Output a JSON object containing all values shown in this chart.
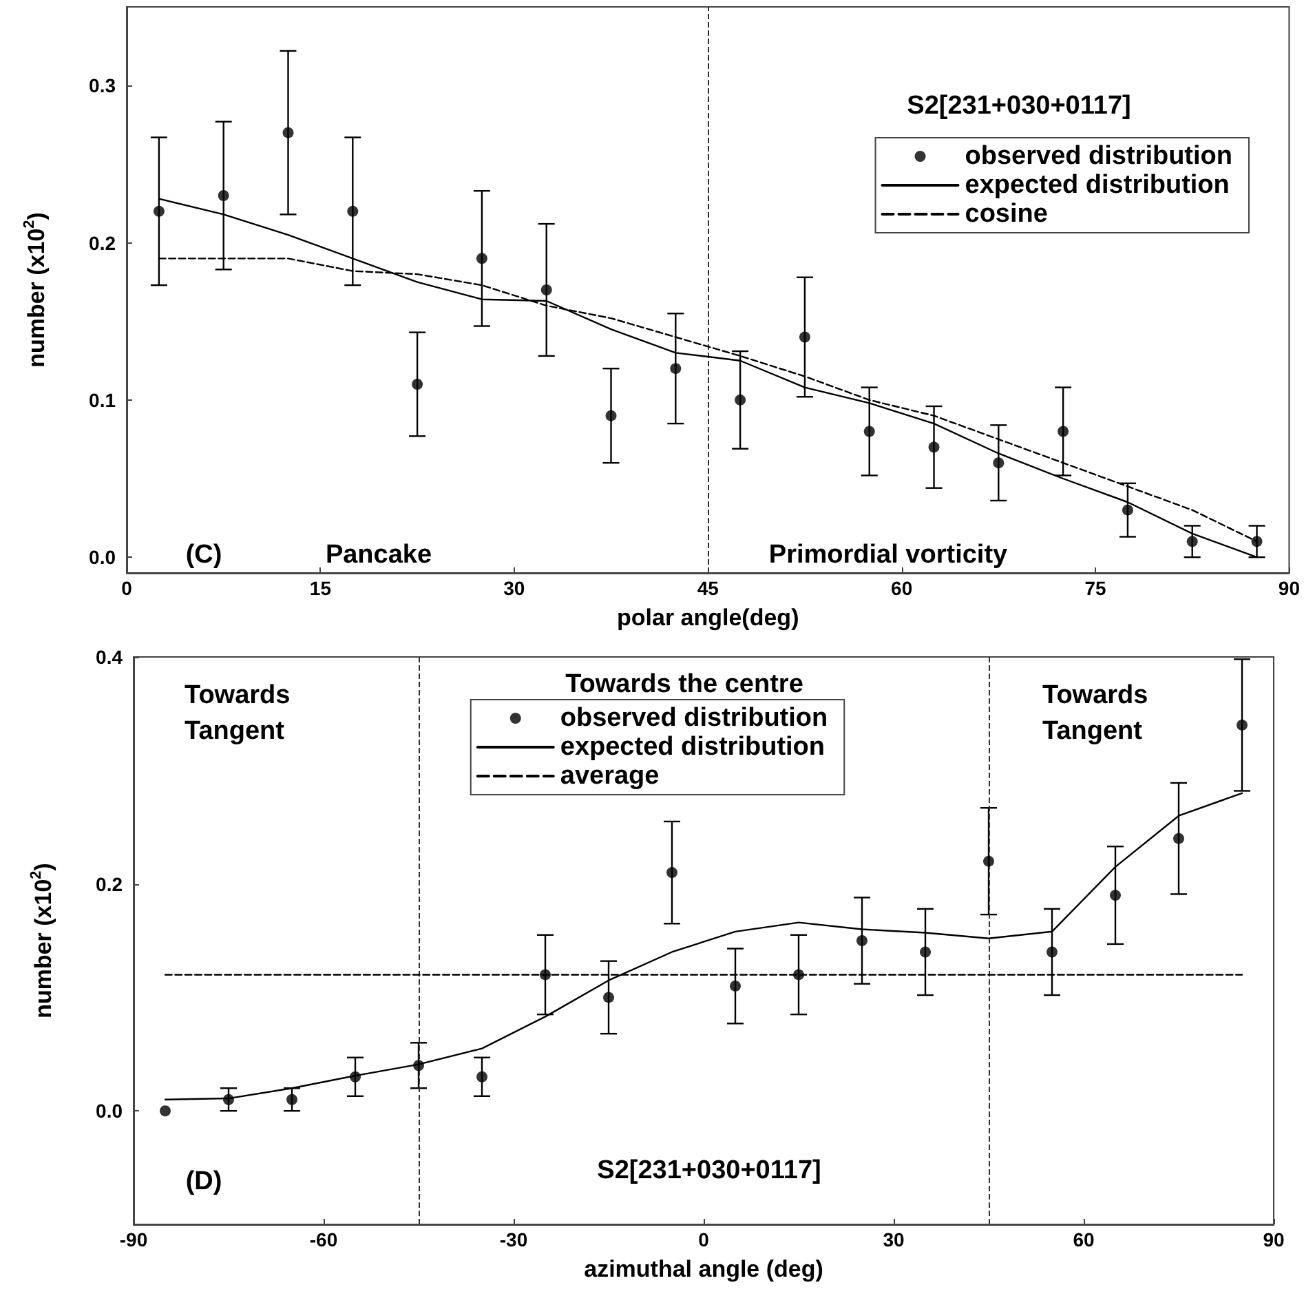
{
  "chart_data": [
    {
      "type": "scatter",
      "xlabel": "polar angle(deg)",
      "ylabel": "number (x10$^{2}$)",
      "xlim": [
        0,
        90
      ],
      "xticks": [
        0,
        15,
        30,
        45,
        60,
        75,
        90
      ],
      "ylim": [
        -0.01,
        0.35
      ],
      "yticks": [
        {
          "value": 0,
          "label": "0.0"
        },
        0.1,
        0.2,
        0.3
      ],
      "x": [
        2.5,
        7.5,
        12.5,
        17.5,
        22.5,
        27.5,
        32.5,
        37.5,
        42.5,
        47.5,
        52.5,
        57.5,
        62.5,
        67.5,
        72.5,
        77.5,
        82.5,
        87.5
      ],
      "series": [
        {
          "name": "observed distribution",
          "color": "#000000",
          "marker": "circle",
          "values": [
            0.22,
            0.23,
            0.27,
            0.22,
            0.11,
            0.19,
            0.17,
            0.09,
            0.12,
            0.1,
            0.14,
            0.08,
            0.07,
            0.06,
            0.08,
            0.03,
            0.01,
            0.01
          ],
          "errors": [
            0.047,
            0.047,
            0.052,
            0.047,
            0.033,
            0.043,
            0.042,
            0.03,
            0.035,
            0.031,
            0.038,
            0.028,
            0.026,
            0.024,
            0.028,
            0.017,
            0.01,
            0.01
          ]
        },
        {
          "name": "expected distribution",
          "type": "line",
          "color": "#000000",
          "marker": "none",
          "line_style": "solid",
          "values": [
            0.228,
            0.218,
            0.205,
            0.19,
            0.175,
            0.164,
            0.163,
            0.145,
            0.13,
            0.125,
            0.108,
            0.098,
            0.085,
            0.066,
            0.05,
            0.035,
            0.015,
            0.0
          ]
        },
        {
          "name": "cosine",
          "type": "line",
          "color": "#000000",
          "marker": "none",
          "line_style": "dashed",
          "values": [
            0.19,
            0.19,
            0.19,
            0.182,
            0.18,
            0.173,
            0.16,
            0.152,
            0.14,
            0.128,
            0.115,
            0.1,
            0.09,
            0.075,
            0.06,
            0.045,
            0.03,
            0.01
          ]
        }
      ],
      "ref_lines": [
        {
          "axis": "x",
          "value": 45,
          "color": "#333333",
          "line_style": "dashed"
        }
      ],
      "annotations": [
        "S2[231+030+0117]",
        "(C)",
        "Pancake",
        "Primordial vorticity"
      ],
      "legend": "top right",
      "grid": false
    },
    {
      "type": "scatter",
      "xlabel": "azimuthal angle (deg)",
      "ylabel": "number (x10$^{2}$)",
      "xlim": [
        -90,
        90
      ],
      "xticks": [
        -90,
        -60,
        -30,
        0,
        30,
        60,
        90
      ],
      "ylim": [
        -0.1,
        0.4
      ],
      "yticks": [
        {
          "value": 0,
          "label": "0.0"
        },
        0.2,
        0.4
      ],
      "x": [
        -85,
        -75,
        -65,
        -55,
        -45,
        -35,
        -25,
        -15,
        -5,
        5,
        15,
        25,
        35,
        45,
        55,
        65,
        75,
        85
      ],
      "series": [
        {
          "name": "observed distribution",
          "color": "#000000",
          "marker": "circle",
          "values": [
            0.0,
            0.01,
            0.01,
            0.03,
            0.04,
            0.03,
            0.12,
            0.1,
            0.21,
            0.11,
            0.12,
            0.15,
            0.14,
            0.22,
            0.14,
            0.19,
            0.24,
            0.34
          ],
          "errors": [
            null,
            0.01,
            0.01,
            0.017,
            0.02,
            0.017,
            0.035,
            0.032,
            0.045,
            0.033,
            0.035,
            0.038,
            0.038,
            0.047,
            0.038,
            0.043,
            0.049,
            0.058
          ]
        },
        {
          "name": "expected distribution",
          "type": "line",
          "color": "#000000",
          "marker": "none",
          "line_style": "solid",
          "values": [
            0.01,
            0.011,
            0.02,
            0.031,
            0.041,
            0.055,
            0.083,
            0.115,
            0.14,
            0.158,
            0.166,
            0.16,
            0.157,
            0.152,
            0.158,
            0.215,
            0.26,
            0.28
          ]
        },
        {
          "name": "average",
          "type": "line",
          "color": "#000000",
          "marker": "none",
          "line_style": "dashed",
          "x": [
            -85,
            85
          ],
          "values": [
            0.12,
            0.12
          ]
        }
      ],
      "ref_lines": [
        {
          "axis": "x",
          "value": -45,
          "color": "#333333",
          "line_style": "dashed"
        },
        {
          "axis": "x",
          "value": 45,
          "color": "#333333",
          "line_style": "dashed"
        }
      ],
      "annotations": [
        "Towards\nTangent",
        "Towards the centre",
        "Towards\nTangent",
        "(D)",
        "S2[231+030+0117]"
      ],
      "legend": "top",
      "grid": false
    }
  ]
}
